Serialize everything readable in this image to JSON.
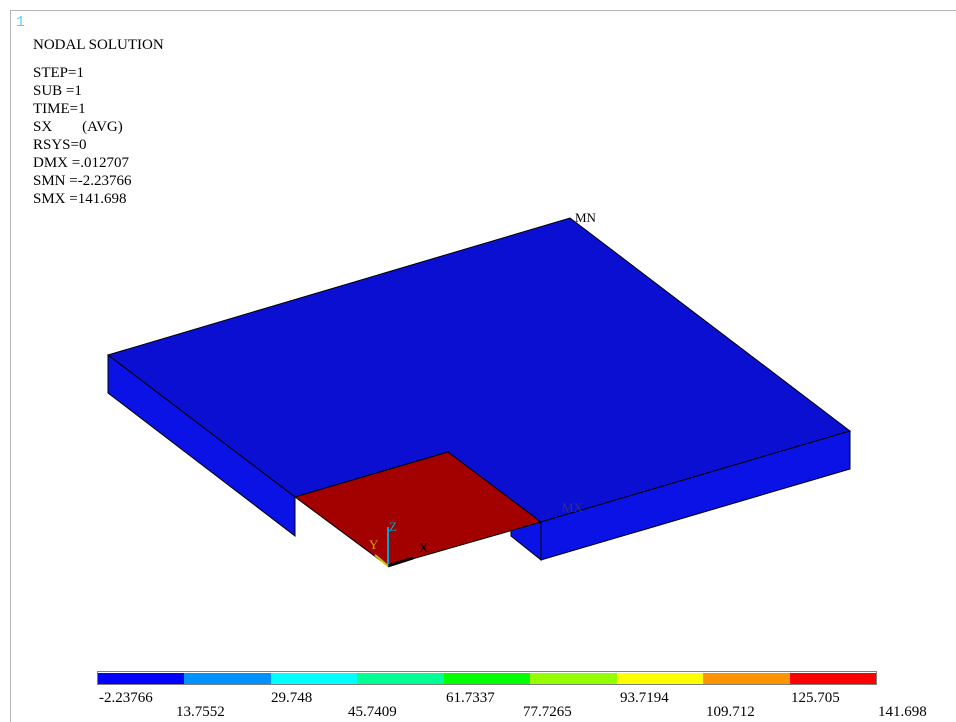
{
  "window_number": "1",
  "header": {
    "title": "NODAL SOLUTION",
    "lines": [
      "STEP=1",
      "SUB =1",
      "TIME=1",
      "SX        (AVG)",
      "RSYS=0",
      "DMX =.012707",
      "SMN =-2.23766",
      "SMX =141.698"
    ]
  },
  "model_labels": {
    "min_marker": "MN",
    "max_marker": "MX",
    "triad_z": "Z",
    "triad_y": "Y",
    "triad_x": "X"
  },
  "colors": {
    "plate": "#0a0fd2",
    "plate_edge": "#000000",
    "max_region": "#a30000"
  },
  "legend": {
    "colors": [
      "#0000ff",
      "#0093ff",
      "#00ffff",
      "#00ff93",
      "#00ff00",
      "#93ff00",
      "#ffff00",
      "#ff9300",
      "#ff0000"
    ],
    "top_values": [
      "-2.23766",
      "29.748",
      "61.7337",
      "93.7194",
      "125.705"
    ],
    "bottom_values": [
      "13.7552",
      "45.7409",
      "77.7265",
      "109.712",
      "141.698"
    ]
  }
}
